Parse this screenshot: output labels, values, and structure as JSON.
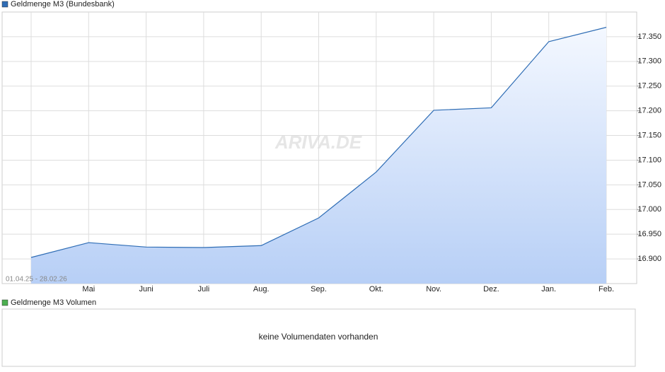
{
  "chart_data": {
    "type": "area",
    "legend": "Geldmenge M3 (Bundesbank)",
    "range_label": "01.04.25 - 28.02.26",
    "watermark": "ARIVA.DE",
    "categories": [
      null,
      "Mai",
      "Juni",
      "Juli",
      "Aug.",
      "Sep.",
      "Okt.",
      "Nov.",
      "Dez.",
      "Jan.",
      "Feb."
    ],
    "series": [
      {
        "name": "Geldmenge M3 (Bundesbank)",
        "color": "#2f6db5",
        "values": [
          16903,
          16933,
          16924,
          16923,
          16927,
          16983,
          17076,
          17201,
          17206,
          17340,
          17369
        ]
      }
    ],
    "ylim": [
      16850,
      17400
    ],
    "yticks": [
      {
        "value": 16900,
        "label": "16.900"
      },
      {
        "value": 16950,
        "label": "16.950"
      },
      {
        "value": 17000,
        "label": "17.000"
      },
      {
        "value": 17050,
        "label": "17.050"
      },
      {
        "value": 17100,
        "label": "17.100"
      },
      {
        "value": 17150,
        "label": "17.150"
      },
      {
        "value": 17200,
        "label": "17.200"
      },
      {
        "value": 17250,
        "label": "17.250"
      },
      {
        "value": 17300,
        "label": "17.300"
      },
      {
        "value": 17350,
        "label": "17.350"
      }
    ],
    "grid": true,
    "volume_panel": {
      "legend": "Geldmenge M3 Volumen",
      "color": "#4caf50",
      "message": "keine Volumendaten vorhanden"
    }
  }
}
